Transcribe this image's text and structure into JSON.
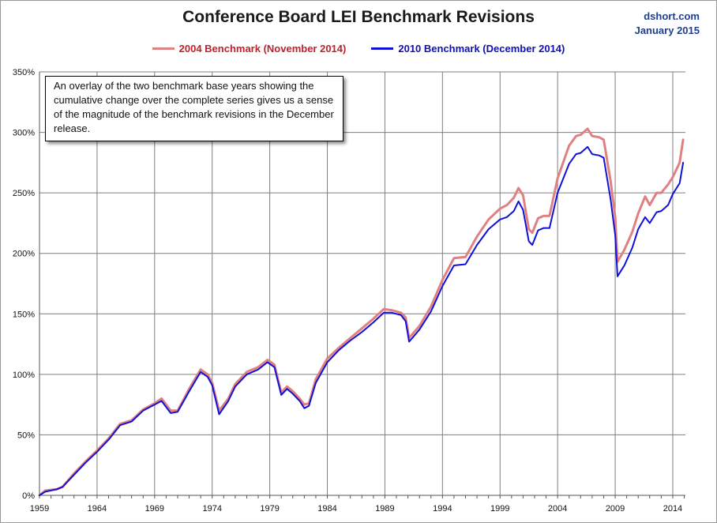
{
  "header": {
    "title": "Conference Board LEI Benchmark Revisions",
    "source_line1": "dshort.com",
    "source_line2": "January 2015"
  },
  "annotation": {
    "text": "An overlay of the two benchmark base years showing the cumulative change over the complete series gives us a sense of the magnitude of the benchmark revisions in the December release."
  },
  "colors": {
    "series_2004": "#e08080",
    "series_2010": "#1010d8",
    "series_2004_label": "#c0202a",
    "series_2010_label": "#1010b0",
    "grid": "#7f7f7f",
    "source": "#1f3f8f"
  },
  "chart_data": {
    "type": "line",
    "title": "Conference Board LEI Benchmark Revisions",
    "xlabel": "",
    "ylabel": "",
    "xlim": [
      1959,
      2015.1
    ],
    "ylim": [
      0,
      350
    ],
    "y_ticks": [
      0,
      50,
      100,
      150,
      200,
      250,
      300,
      350
    ],
    "y_tick_labels": [
      "0%",
      "50%",
      "100%",
      "150%",
      "200%",
      "250%",
      "300%",
      "350%"
    ],
    "x_ticks": [
      1959,
      1964,
      1969,
      1974,
      1979,
      1984,
      1989,
      1994,
      1999,
      2004,
      2009,
      2014
    ],
    "x_tick_labels": [
      "1959",
      "1964",
      "1969",
      "1974",
      "1979",
      "1984",
      "1989",
      "1994",
      "1999",
      "2004",
      "2009",
      "2014"
    ],
    "grid": "vertical and horizontal",
    "legend_position": "top-center",
    "series": [
      {
        "name": "2004 Benchmark (November 2014)",
        "x": [
          1959.0,
          1959.5,
          1960.5,
          1961.0,
          1962.0,
          1963.0,
          1964.0,
          1965.0,
          1966.0,
          1967.0,
          1968.0,
          1969.0,
          1969.6,
          1970.4,
          1971.0,
          1972.0,
          1973.0,
          1973.6,
          1974.0,
          1974.6,
          1975.4,
          1976.0,
          1977.0,
          1978.0,
          1978.8,
          1979.4,
          1980.0,
          1980.5,
          1981.0,
          1981.6,
          1982.0,
          1982.4,
          1983.0,
          1984.0,
          1985.0,
          1986.0,
          1987.0,
          1988.0,
          1988.9,
          1989.6,
          1990.4,
          1990.8,
          1991.1,
          1992.0,
          1993.0,
          1994.0,
          1995.0,
          1996.0,
          1997.0,
          1998.0,
          1999.0,
          1999.6,
          2000.2,
          2000.6,
          2001.0,
          2001.5,
          2001.8,
          2002.3,
          2002.8,
          2003.3,
          2004.0,
          2005.0,
          2005.6,
          2006.0,
          2006.6,
          2007.0,
          2007.6,
          2008.0,
          2008.6,
          2009.0,
          2009.2,
          2009.8,
          2010.5,
          2011.0,
          2011.6,
          2012.0,
          2012.6,
          2013.0,
          2013.6,
          2014.0,
          2014.6,
          2014.9
        ],
        "y": [
          0,
          4,
          5,
          7,
          18,
          28,
          37,
          47,
          59,
          62,
          71,
          76,
          80,
          70,
          70,
          88,
          104,
          100,
          93,
          70,
          80,
          92,
          102,
          106,
          112,
          108,
          85,
          90,
          86,
          80,
          75,
          76,
          96,
          113,
          122,
          130,
          138,
          146,
          154,
          153,
          151,
          147,
          130,
          140,
          156,
          178,
          196,
          197,
          214,
          228,
          237,
          240,
          246,
          254,
          248,
          220,
          217,
          229,
          231,
          231,
          262,
          289,
          297,
          298,
          303,
          297,
          296,
          294,
          260,
          230,
          193,
          203,
          218,
          233,
          247,
          240,
          250,
          250,
          257,
          263,
          275,
          294
        ]
      },
      {
        "name": "2010 Benchmark (December 2014)",
        "x": [
          1959.0,
          1959.5,
          1960.5,
          1961.0,
          1962.0,
          1963.0,
          1964.0,
          1965.0,
          1966.0,
          1967.0,
          1968.0,
          1969.0,
          1969.6,
          1970.4,
          1971.0,
          1972.0,
          1973.0,
          1973.6,
          1974.0,
          1974.6,
          1975.4,
          1976.0,
          1977.0,
          1978.0,
          1978.8,
          1979.4,
          1980.0,
          1980.5,
          1981.0,
          1981.6,
          1982.0,
          1982.4,
          1983.0,
          1984.0,
          1985.0,
          1986.0,
          1987.0,
          1988.0,
          1988.9,
          1989.6,
          1990.4,
          1990.8,
          1991.1,
          1992.0,
          1993.0,
          1994.0,
          1995.0,
          1996.0,
          1997.0,
          1998.0,
          1999.0,
          1999.6,
          2000.2,
          2000.6,
          2001.0,
          2001.5,
          2001.8,
          2002.3,
          2002.8,
          2003.3,
          2004.0,
          2005.0,
          2005.6,
          2006.0,
          2006.6,
          2007.0,
          2007.6,
          2008.0,
          2008.6,
          2009.0,
          2009.2,
          2009.8,
          2010.5,
          2011.0,
          2011.6,
          2012.0,
          2012.6,
          2013.0,
          2013.6,
          2014.0,
          2014.6,
          2014.9
        ],
        "y": [
          0,
          3,
          5,
          7,
          17,
          27,
          36,
          46,
          58,
          61,
          70,
          75,
          78,
          68,
          69,
          86,
          102,
          98,
          91,
          67,
          78,
          90,
          100,
          104,
          110,
          106,
          83,
          88,
          84,
          78,
          72,
          74,
          93,
          110,
          120,
          128,
          135,
          143,
          151,
          151,
          149,
          144,
          127,
          137,
          152,
          173,
          190,
          191,
          207,
          220,
          228,
          230,
          235,
          243,
          236,
          210,
          207,
          219,
          221,
          221,
          250,
          274,
          282,
          283,
          288,
          282,
          281,
          279,
          245,
          215,
          181,
          190,
          205,
          220,
          230,
          225,
          234,
          235,
          240,
          249,
          258,
          275
        ]
      }
    ]
  }
}
